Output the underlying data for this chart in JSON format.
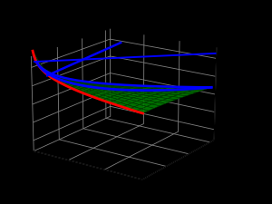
{
  "bg_color": "#000000",
  "grid_color": "#808080",
  "surface_color": "#00aa00",
  "surface_alpha": 0.9,
  "surface_edge_color": "#003300",
  "blue_color": "#0000ff",
  "red_color": "#ff0000",
  "green_legend_color": "#00cc00",
  "figsize": [
    3.0,
    2.25
  ],
  "dpi": 100,
  "elev": 18,
  "azim": -55,
  "M": 1.0,
  "lam": 0.25,
  "N": 3.2,
  "p_min": 0.05,
  "p_max": 3.0,
  "q_max": 3.2,
  "v_min": 1.2,
  "v_max": 3.8
}
